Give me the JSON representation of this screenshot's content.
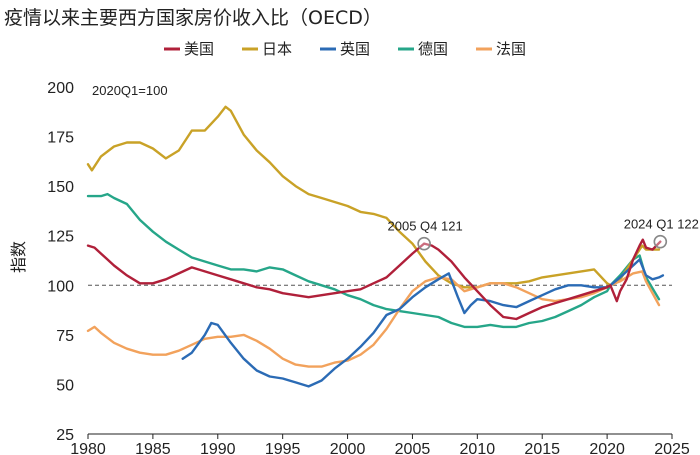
{
  "chart_data": {
    "type": "line",
    "title": "疫情以来主要西方国家房价收入比（OECD）",
    "note": "2020Q1=100",
    "ylabel": "指数",
    "xlabel": "",
    "xlim": [
      1980,
      2025
    ],
    "ylim": [
      25,
      200
    ],
    "xticks": [
      "1980",
      "1985",
      "1990",
      "1995",
      "2000",
      "2005",
      "2010",
      "2015",
      "2020",
      "2025"
    ],
    "yticks": [
      "200",
      "175",
      "150",
      "125",
      "100",
      "75",
      "50",
      "25"
    ],
    "reference_line": 100,
    "annotations": [
      {
        "label": "2005 Q4 121",
        "x": 2005.9,
        "y": 121
      },
      {
        "label": "2024 Q1 122",
        "x": 2024.1,
        "y": 122
      }
    ],
    "series": [
      {
        "name": "美国",
        "color": "#b0203a",
        "points": [
          [
            1980,
            120
          ],
          [
            1980.5,
            119
          ],
          [
            1981,
            116
          ],
          [
            1981.5,
            113
          ],
          [
            1982,
            110
          ],
          [
            1983,
            105
          ],
          [
            1984,
            101
          ],
          [
            1985,
            101
          ],
          [
            1986,
            103
          ],
          [
            1987,
            106
          ],
          [
            1988,
            109
          ],
          [
            1989,
            107
          ],
          [
            1990,
            105
          ],
          [
            1991,
            103
          ],
          [
            1992,
            101
          ],
          [
            1993,
            99
          ],
          [
            1994,
            98
          ],
          [
            1995,
            96
          ],
          [
            1996,
            95
          ],
          [
            1997,
            94
          ],
          [
            1998,
            95
          ],
          [
            1999,
            96
          ],
          [
            2000,
            97
          ],
          [
            2001,
            98
          ],
          [
            2002,
            101
          ],
          [
            2003,
            104
          ],
          [
            2004,
            110
          ],
          [
            2005,
            116
          ],
          [
            2005.9,
            121
          ],
          [
            2006.5,
            120
          ],
          [
            2007,
            118
          ],
          [
            2008,
            112
          ],
          [
            2009,
            104
          ],
          [
            2010,
            97
          ],
          [
            2011,
            90
          ],
          [
            2012,
            84
          ],
          [
            2013,
            83
          ],
          [
            2014,
            86
          ],
          [
            2015,
            89
          ],
          [
            2016,
            91
          ],
          [
            2017,
            93
          ],
          [
            2018,
            95
          ],
          [
            2019,
            97
          ],
          [
            2020,
            99
          ],
          [
            2020.25,
            100
          ],
          [
            2020.75,
            92
          ],
          [
            2021,
            97
          ],
          [
            2021.5,
            103
          ],
          [
            2022,
            113
          ],
          [
            2022.5,
            120
          ],
          [
            2022.75,
            123
          ],
          [
            2023,
            119
          ],
          [
            2023.5,
            118
          ],
          [
            2024.1,
            122
          ]
        ]
      },
      {
        "name": "日本",
        "color": "#c9a227",
        "points": [
          [
            1980,
            161
          ],
          [
            1980.3,
            158
          ],
          [
            1981,
            165
          ],
          [
            1982,
            170
          ],
          [
            1983,
            172
          ],
          [
            1984,
            172
          ],
          [
            1985,
            169
          ],
          [
            1986,
            164
          ],
          [
            1987,
            168
          ],
          [
            1988,
            178
          ],
          [
            1989,
            178
          ],
          [
            1990,
            185
          ],
          [
            1990.6,
            190
          ],
          [
            1991,
            188
          ],
          [
            1992,
            176
          ],
          [
            1993,
            168
          ],
          [
            1994,
            162
          ],
          [
            1995,
            155
          ],
          [
            1996,
            150
          ],
          [
            1997,
            146
          ],
          [
            1998,
            144
          ],
          [
            1999,
            142
          ],
          [
            2000,
            140
          ],
          [
            2001,
            137
          ],
          [
            2002,
            136
          ],
          [
            2003,
            134
          ],
          [
            2004,
            127
          ],
          [
            2005,
            121
          ],
          [
            2006,
            112
          ],
          [
            2007,
            105
          ],
          [
            2008,
            101
          ],
          [
            2009,
            99
          ],
          [
            2010,
            99
          ],
          [
            2011,
            101
          ],
          [
            2012,
            101
          ],
          [
            2013,
            101
          ],
          [
            2014,
            102
          ],
          [
            2015,
            104
          ],
          [
            2016,
            105
          ],
          [
            2017,
            106
          ],
          [
            2018,
            107
          ],
          [
            2019,
            108
          ],
          [
            2020,
            101
          ],
          [
            2020.25,
            100
          ],
          [
            2021,
            103
          ],
          [
            2022,
            113
          ],
          [
            2022.7,
            120
          ],
          [
            2023,
            118
          ],
          [
            2024,
            118
          ]
        ]
      },
      {
        "name": "英国",
        "color": "#2b6bb5",
        "points": [
          [
            1987.3,
            63
          ],
          [
            1988,
            66
          ],
          [
            1989,
            75
          ],
          [
            1989.5,
            81
          ],
          [
            1990,
            80
          ],
          [
            1991,
            71
          ],
          [
            1992,
            63
          ],
          [
            1993,
            57
          ],
          [
            1994,
            54
          ],
          [
            1995,
            53
          ],
          [
            1996,
            51
          ],
          [
            1997,
            49
          ],
          [
            1998,
            52
          ],
          [
            1999,
            58
          ],
          [
            2000,
            63
          ],
          [
            2001,
            69
          ],
          [
            2002,
            76
          ],
          [
            2003,
            85
          ],
          [
            2004,
            88
          ],
          [
            2005,
            94
          ],
          [
            2006,
            99
          ],
          [
            2007,
            103
          ],
          [
            2007.8,
            106
          ],
          [
            2008.5,
            94
          ],
          [
            2009,
            86
          ],
          [
            2009.5,
            90
          ],
          [
            2010,
            93
          ],
          [
            2011,
            92
          ],
          [
            2012,
            90
          ],
          [
            2013,
            89
          ],
          [
            2014,
            92
          ],
          [
            2015,
            95
          ],
          [
            2016,
            98
          ],
          [
            2017,
            100
          ],
          [
            2018,
            100
          ],
          [
            2019,
            99
          ],
          [
            2020,
            99
          ],
          [
            2020.25,
            100
          ],
          [
            2021,
            104
          ],
          [
            2022,
            110
          ],
          [
            2022.5,
            113
          ],
          [
            2023,
            105
          ],
          [
            2023.5,
            103
          ],
          [
            2024,
            104
          ],
          [
            2024.3,
            105
          ]
        ]
      },
      {
        "name": "德国",
        "color": "#26a689",
        "points": [
          [
            1980,
            145
          ],
          [
            1981,
            145
          ],
          [
            1981.5,
            146
          ],
          [
            1982,
            144
          ],
          [
            1983,
            141
          ],
          [
            1984,
            133
          ],
          [
            1985,
            127
          ],
          [
            1986,
            122
          ],
          [
            1987,
            118
          ],
          [
            1988,
            114
          ],
          [
            1989,
            112
          ],
          [
            1990,
            110
          ],
          [
            1991,
            108
          ],
          [
            1992,
            108
          ],
          [
            1993,
            107
          ],
          [
            1994,
            109
          ],
          [
            1995,
            108
          ],
          [
            1996,
            105
          ],
          [
            1997,
            102
          ],
          [
            1998,
            100
          ],
          [
            1999,
            98
          ],
          [
            2000,
            95
          ],
          [
            2001,
            93
          ],
          [
            2002,
            90
          ],
          [
            2003,
            88
          ],
          [
            2004,
            87
          ],
          [
            2005,
            86
          ],
          [
            2006,
            85
          ],
          [
            2007,
            84
          ],
          [
            2008,
            81
          ],
          [
            2009,
            79
          ],
          [
            2010,
            79
          ],
          [
            2011,
            80
          ],
          [
            2012,
            79
          ],
          [
            2013,
            79
          ],
          [
            2014,
            81
          ],
          [
            2015,
            82
          ],
          [
            2016,
            84
          ],
          [
            2017,
            87
          ],
          [
            2018,
            90
          ],
          [
            2019,
            94
          ],
          [
            2020,
            97
          ],
          [
            2020.25,
            100
          ],
          [
            2021,
            105
          ],
          [
            2022,
            113
          ],
          [
            2022.5,
            115
          ],
          [
            2023,
            104
          ],
          [
            2024,
            93
          ]
        ]
      },
      {
        "name": "法国",
        "color": "#f2a25c",
        "points": [
          [
            1980,
            77
          ],
          [
            1980.5,
            79
          ],
          [
            1981,
            76
          ],
          [
            1982,
            71
          ],
          [
            1983,
            68
          ],
          [
            1984,
            66
          ],
          [
            1985,
            65
          ],
          [
            1986,
            65
          ],
          [
            1987,
            67
          ],
          [
            1988,
            70
          ],
          [
            1989,
            73
          ],
          [
            1990,
            74
          ],
          [
            1991,
            74
          ],
          [
            1992,
            75
          ],
          [
            1993,
            72
          ],
          [
            1994,
            68
          ],
          [
            1995,
            63
          ],
          [
            1996,
            60
          ],
          [
            1997,
            59
          ],
          [
            1998,
            59
          ],
          [
            1999,
            61
          ],
          [
            2000,
            62
          ],
          [
            2001,
            65
          ],
          [
            2002,
            70
          ],
          [
            2003,
            78
          ],
          [
            2004,
            88
          ],
          [
            2005,
            97
          ],
          [
            2006,
            102
          ],
          [
            2007,
            104
          ],
          [
            2008,
            103
          ],
          [
            2009,
            97
          ],
          [
            2010,
            99
          ],
          [
            2011,
            101
          ],
          [
            2012,
            101
          ],
          [
            2013,
            99
          ],
          [
            2014,
            96
          ],
          [
            2015,
            93
          ],
          [
            2016,
            92
          ],
          [
            2017,
            93
          ],
          [
            2018,
            94
          ],
          [
            2019,
            96
          ],
          [
            2020,
            99
          ],
          [
            2020.25,
            100
          ],
          [
            2021,
            102
          ],
          [
            2022,
            106
          ],
          [
            2022.7,
            107
          ],
          [
            2023,
            102
          ],
          [
            2024,
            90
          ]
        ]
      }
    ]
  }
}
